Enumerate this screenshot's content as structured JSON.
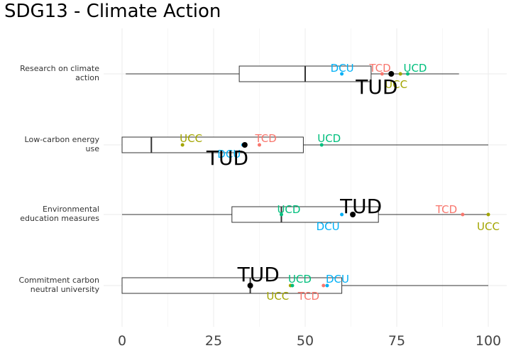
{
  "chart_data": {
    "type": "boxplot",
    "title": "SDG13 - Climate Action",
    "xlabel": "",
    "ylabel": "",
    "xlim": [
      0,
      100
    ],
    "x_ticks": [
      0,
      25,
      50,
      75,
      100
    ],
    "grid": true,
    "colors": {
      "TUD": "#000000",
      "DCU": "#00b0f6",
      "TCD": "#f8766d",
      "UCD": "#00bf7d",
      "UCC": "#a3a500"
    },
    "categories": [
      {
        "label_lines": [
          "Research on climate",
          "action"
        ],
        "box": {
          "min": 1,
          "q1": 32,
          "median": 50,
          "q3": 68,
          "max": 92
        },
        "points": [
          {
            "name": "DCU",
            "value": 60
          },
          {
            "name": "TCD",
            "value": 71
          },
          {
            "name": "UCC",
            "value": 76
          },
          {
            "name": "UCD",
            "value": 78
          },
          {
            "name": "TUD",
            "value": 73.5
          }
        ]
      },
      {
        "label_lines": [
          "Low-carbon energy",
          "use"
        ],
        "box": {
          "min": 0,
          "q1": 0,
          "median": 8,
          "q3": 49.5,
          "max": 100
        },
        "points": [
          {
            "name": "UCC",
            "value": 16.5
          },
          {
            "name": "DCU",
            "value": 33
          },
          {
            "name": "TCD",
            "value": 37.5
          },
          {
            "name": "UCD",
            "value": 54.5
          },
          {
            "name": "TUD",
            "value": 33.5
          }
        ]
      },
      {
        "label_lines": [
          "Environmental",
          "education measures"
        ],
        "box": {
          "min": 0,
          "q1": 30,
          "median": 43.5,
          "q3": 70,
          "max": 100
        },
        "points": [
          {
            "name": "UCD",
            "value": 43.5
          },
          {
            "name": "DCU",
            "value": 60
          },
          {
            "name": "TCD",
            "value": 93
          },
          {
            "name": "UCC",
            "value": 100
          },
          {
            "name": "TUD",
            "value": 63
          }
        ]
      },
      {
        "label_lines": [
          "Commitment carbon",
          "neutral university"
        ],
        "box": {
          "min": 0,
          "q1": 0,
          "median": 35,
          "q3": 60,
          "max": 100
        },
        "points": [
          {
            "name": "UCC",
            "value": 46
          },
          {
            "name": "UCD",
            "value": 46.5
          },
          {
            "name": "TCD",
            "value": 55
          },
          {
            "name": "DCU",
            "value": 56
          },
          {
            "name": "TUD",
            "value": 35
          }
        ]
      }
    ]
  }
}
